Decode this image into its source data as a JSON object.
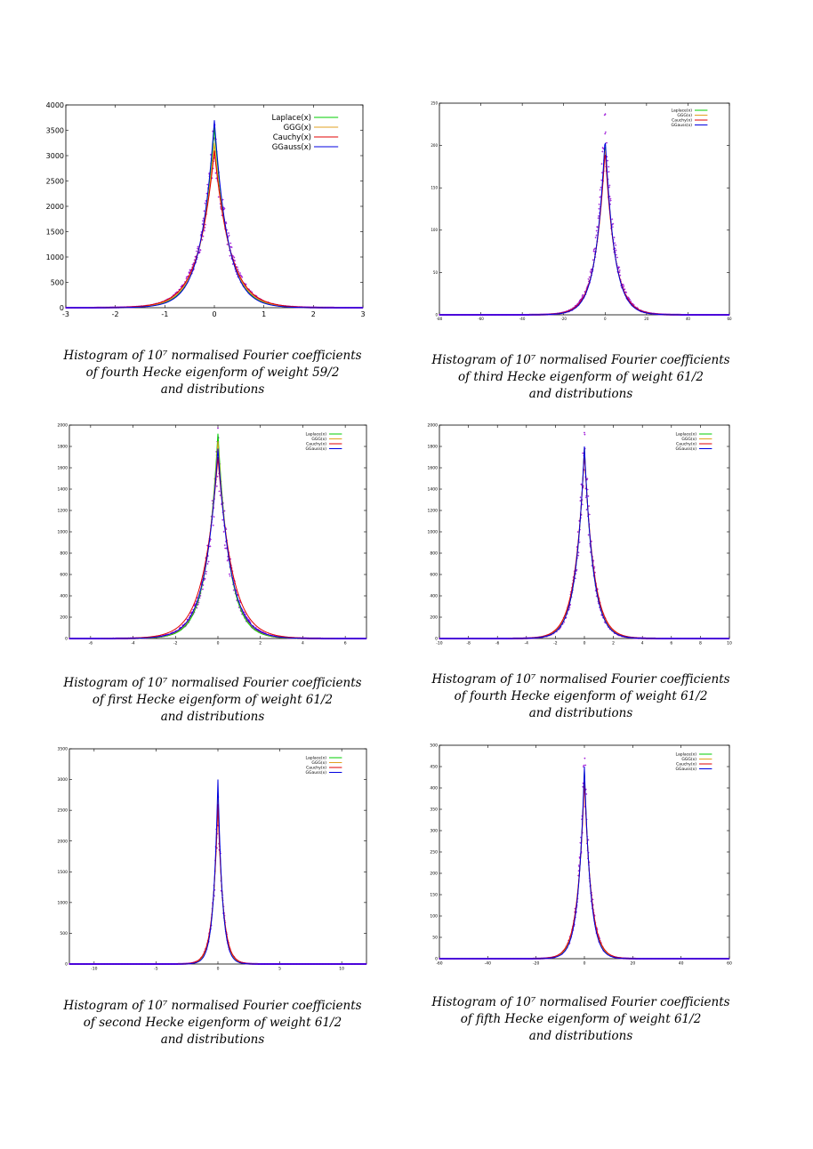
{
  "colors": {
    "histogram": "#9400d3",
    "laplace": "#00cc00",
    "ggg": "#e0a020",
    "cauchy": "#e00000",
    "ggauss": "#0000e0",
    "axis": "#000000"
  },
  "panels": [
    {
      "chart_data": {
        "type": "line",
        "xlim": [
          -3,
          3
        ],
        "ylim": [
          0,
          4000
        ],
        "xticks": [
          "-3",
          "-2",
          "-1",
          "0",
          "1",
          "2",
          "3"
        ],
        "yticks": [
          "0",
          "500",
          "1000",
          "1500",
          "2000",
          "2500",
          "3000",
          "3500",
          "4000"
        ],
        "legend_position": "top-right",
        "series": [
          {
            "name": "Laplace(x)",
            "color": "laplace",
            "peak": 3550,
            "scale": 0.28
          },
          {
            "name": "GGG(x)",
            "color": "ggg",
            "peak": 3250,
            "scale": 0.3
          },
          {
            "name": "Cauchy(x)",
            "color": "cauchy",
            "peak": 3100,
            "scale": 0.32
          },
          {
            "name": "GGauss(x)",
            "color": "ggauss",
            "peak": 3700,
            "scale": 0.27
          }
        ],
        "histogram": {
          "peak": 3400,
          "scale": 0.3
        }
      },
      "caption": {
        "line1": "Histogram of 10⁷ normalised Fourier coefficients",
        "line2": "of fourth Hecke eigenform of weight 59/2",
        "line3": "and distributions"
      }
    },
    {
      "chart_data": {
        "type": "line",
        "xlim": [
          -80,
          60
        ],
        "ylim": [
          0,
          250
        ],
        "xticks": [
          "-80",
          "-60",
          "-40",
          "-20",
          "0",
          "20",
          "40",
          "60"
        ],
        "yticks": [
          "0",
          "50",
          "100",
          "150",
          "200",
          "250"
        ],
        "legend_position": "top-right",
        "series": [
          {
            "name": "Laplace(x)",
            "color": "laplace",
            "peak": 205,
            "scale": 4.5
          },
          {
            "name": "GGG(x)",
            "color": "ggg",
            "peak": 200,
            "scale": 4.6
          },
          {
            "name": "Cauchy(x)",
            "color": "cauchy",
            "peak": 195,
            "scale": 4.7
          },
          {
            "name": "GGauss(x)",
            "color": "ggauss",
            "peak": 210,
            "scale": 4.4
          }
        ],
        "histogram": {
          "peak": 225,
          "scale": 4.5
        }
      },
      "caption": {
        "line1": "Histogram of 10⁷ normalised Fourier coefficients",
        "line2": "of third Hecke eigenform of weight 61/2",
        "line3": "and distributions"
      }
    },
    {
      "chart_data": {
        "type": "line",
        "xlim": [
          -7,
          7
        ],
        "ylim": [
          0,
          2000
        ],
        "xticks": [
          "-6",
          "-4",
          "-2",
          "0",
          "2",
          "4",
          "6"
        ],
        "yticks": [
          "0",
          "200",
          "400",
          "600",
          "800",
          "1000",
          "1200",
          "1400",
          "1600",
          "1800",
          "2000"
        ],
        "legend_position": "top-right",
        "series": [
          {
            "name": "Laplace(x)",
            "color": "laplace",
            "peak": 1920,
            "scale": 0.55
          },
          {
            "name": "GGG(x)",
            "color": "ggg",
            "peak": 1850,
            "scale": 0.58
          },
          {
            "name": "Cauchy(x)",
            "color": "cauchy",
            "peak": 1700,
            "scale": 0.68
          },
          {
            "name": "GGauss(x)",
            "color": "ggauss",
            "peak": 1780,
            "scale": 0.6
          }
        ],
        "histogram": {
          "peak": 1750,
          "scale": 0.6
        }
      },
      "caption": {
        "line1": "Histogram of 10⁷ normalised Fourier coefficients",
        "line2": "of first Hecke eigenform of weight 61/2",
        "line3": "and distributions"
      }
    },
    {
      "chart_data": {
        "type": "line",
        "xlim": [
          -10,
          10
        ],
        "ylim": [
          0,
          2000
        ],
        "xticks": [
          "-10",
          "-8",
          "-6",
          "-4",
          "-2",
          "0",
          "2",
          "4",
          "6",
          "8",
          "10"
        ],
        "yticks": [
          "0",
          "200",
          "400",
          "600",
          "800",
          "1000",
          "1200",
          "1400",
          "1600",
          "1800",
          "2000"
        ],
        "legend_position": "top-right",
        "series": [
          {
            "name": "Laplace(x)",
            "color": "laplace",
            "peak": 1790,
            "scale": 0.6
          },
          {
            "name": "GGG(x)",
            "color": "ggg",
            "peak": 1780,
            "scale": 0.62
          },
          {
            "name": "Cauchy(x)",
            "color": "cauchy",
            "peak": 1750,
            "scale": 0.65
          },
          {
            "name": "GGauss(x)",
            "color": "ggauss",
            "peak": 1800,
            "scale": 0.6
          }
        ],
        "histogram": {
          "peak": 1840,
          "scale": 0.6
        }
      },
      "caption": {
        "line1": "Histogram of 10⁷ normalised Fourier coefficients",
        "line2": "of fourth Hecke eigenform of weight 61/2",
        "line3": "and distributions"
      }
    },
    {
      "chart_data": {
        "type": "line",
        "xlim": [
          -12,
          12
        ],
        "ylim": [
          0,
          3500
        ],
        "xticks": [
          "-10",
          "-5",
          "0",
          "5",
          "10"
        ],
        "yticks": [
          "0",
          "500",
          "1000",
          "1500",
          "2000",
          "2500",
          "3000",
          "3500"
        ],
        "legend_position": "top-right",
        "series": [
          {
            "name": "Laplace(x)",
            "color": "laplace",
            "peak": 2800,
            "scale": 0.38
          },
          {
            "name": "GGG(x)",
            "color": "ggg",
            "peak": 2700,
            "scale": 0.4
          },
          {
            "name": "Cauchy(x)",
            "color": "cauchy",
            "peak": 2600,
            "scale": 0.42
          },
          {
            "name": "GGauss(x)",
            "color": "ggauss",
            "peak": 3000,
            "scale": 0.36
          }
        ],
        "histogram": {
          "peak": 2700,
          "scale": 0.4
        }
      },
      "caption": {
        "line1": "Histogram of 10⁷ normalised Fourier coefficients",
        "line2": "of second Hecke eigenform of weight 61/2",
        "line3": "and distributions"
      }
    },
    {
      "chart_data": {
        "type": "line",
        "xlim": [
          -60,
          60
        ],
        "ylim": [
          0,
          500
        ],
        "xticks": [
          "-60",
          "-40",
          "-20",
          "0",
          "20",
          "40",
          "60"
        ],
        "yticks": [
          "0",
          "50",
          "100",
          "150",
          "200",
          "250",
          "300",
          "350",
          "400",
          "450",
          "500"
        ],
        "legend_position": "top-right",
        "series": [
          {
            "name": "Laplace(x)",
            "color": "laplace",
            "peak": 440,
            "scale": 2.6
          },
          {
            "name": "GGG(x)",
            "color": "ggg",
            "peak": 430,
            "scale": 2.7
          },
          {
            "name": "Cauchy(x)",
            "color": "cauchy",
            "peak": 420,
            "scale": 2.8
          },
          {
            "name": "GGauss(x)",
            "color": "ggauss",
            "peak": 450,
            "scale": 2.5
          }
        ],
        "histogram": {
          "peak": 460,
          "scale": 2.6
        }
      },
      "caption": {
        "line1": "Histogram of 10⁷ normalised Fourier coefficients",
        "line2": "of fifth Hecke eigenform of weight 61/2",
        "line3": "and distributions"
      }
    }
  ]
}
